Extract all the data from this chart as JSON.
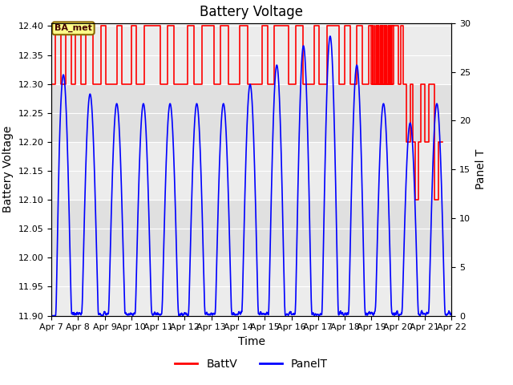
{
  "title": "Battery Voltage",
  "xlabel": "Time",
  "ylabel_left": "Battery Voltage",
  "ylabel_right": "Panel T",
  "ylim_left": [
    11.9,
    12.405
  ],
  "ylim_right": [
    0,
    30
  ],
  "xlim": [
    0,
    15
  ],
  "x_tick_labels": [
    "Apr 7",
    "Apr 8",
    "Apr 9",
    "Apr 10",
    "Apr 11",
    "Apr 12",
    "Apr 13",
    "Apr 14",
    "Apr 15",
    "Apr 16",
    "Apr 17",
    "Apr 18",
    "Apr 19",
    "Apr 20",
    "Apr 21",
    "Apr 22"
  ],
  "x_tick_positions": [
    0,
    1,
    2,
    3,
    4,
    5,
    6,
    7,
    8,
    9,
    10,
    11,
    12,
    13,
    14,
    15
  ],
  "annotation_text": "BA_met",
  "background_color": "#ffffff",
  "plot_bg_color": "#e0e0e0",
  "stripe_light": "#ececec",
  "red_color": "#ff0000",
  "blue_color": "#0000ff",
  "legend_labels": [
    "BattV",
    "PanelT"
  ],
  "title_fontsize": 12,
  "axis_label_fontsize": 10,
  "tick_fontsize": 8,
  "batt_x": [
    0.0,
    0.15,
    0.15,
    0.35,
    0.35,
    0.55,
    0.55,
    0.75,
    0.75,
    0.9,
    0.9,
    1.1,
    1.1,
    1.3,
    1.3,
    1.55,
    1.55,
    1.85,
    1.85,
    2.05,
    2.05,
    2.45,
    2.45,
    2.65,
    2.65,
    3.0,
    3.0,
    3.2,
    3.2,
    3.5,
    3.5,
    4.1,
    4.1,
    4.35,
    4.35,
    4.6,
    4.6,
    5.1,
    5.1,
    5.35,
    5.35,
    5.65,
    5.65,
    6.1,
    6.1,
    6.35,
    6.35,
    6.65,
    6.65,
    7.05,
    7.05,
    7.35,
    7.35,
    7.9,
    7.9,
    8.1,
    8.1,
    8.35,
    8.35,
    8.9,
    8.9,
    9.15,
    9.15,
    9.45,
    9.45,
    9.85,
    9.85,
    10.05,
    10.05,
    10.35,
    10.35,
    10.8,
    10.8,
    11.0,
    11.0,
    11.2,
    11.2,
    11.45,
    11.45,
    11.65,
    11.65,
    11.9,
    11.9,
    12.05,
    12.05,
    12.2,
    12.2,
    12.27,
    12.27,
    12.32,
    12.32,
    12.38,
    12.38,
    12.44,
    12.44,
    12.49,
    12.49,
    12.54,
    12.54,
    12.59,
    12.59,
    12.65,
    12.65,
    12.72,
    12.72,
    12.78,
    12.78,
    12.84,
    12.84,
    12.0,
    12.0,
    12.05,
    12.05,
    12.1,
    12.1,
    12.15,
    12.15,
    12.2,
    12.2,
    12.25,
    12.25,
    12.35,
    12.35,
    12.4,
    12.4,
    12.5,
    12.5,
    12.55,
    12.55,
    12.65,
    12.65,
    12.7,
    12.7,
    12.75,
    12.75,
    13.0,
    13.0,
    13.1,
    13.1,
    13.2,
    13.2,
    13.3,
    13.3,
    13.45,
    13.45,
    13.55,
    13.55,
    13.65,
    13.65,
    13.75,
    13.75,
    13.85,
    13.85,
    14.0,
    14.0,
    14.15,
    14.15,
    14.35,
    14.35,
    14.5,
    14.5,
    14.65,
    14.65,
    15.0
  ],
  "batt_v": [
    12.3,
    12.3,
    12.4,
    12.4,
    12.3,
    12.3,
    12.4,
    12.4,
    12.3,
    12.3,
    12.4,
    12.4,
    12.3,
    12.3,
    12.4,
    12.4,
    12.3,
    12.3,
    12.4,
    12.4,
    12.3,
    12.3,
    12.4,
    12.4,
    12.3,
    12.3,
    12.4,
    12.4,
    12.3,
    12.3,
    12.4,
    12.4,
    12.3,
    12.3,
    12.4,
    12.4,
    12.3,
    12.3,
    12.4,
    12.4,
    12.3,
    12.3,
    12.4,
    12.4,
    12.3,
    12.3,
    12.4,
    12.4,
    12.3,
    12.3,
    12.4,
    12.4,
    12.3,
    12.3,
    12.4,
    12.4,
    12.3,
    12.3,
    12.4,
    12.4,
    12.3,
    12.3,
    12.4,
    12.4,
    12.3,
    12.3,
    12.4,
    12.4,
    12.3,
    12.3,
    12.4,
    12.4,
    12.3,
    12.3,
    12.4,
    12.4,
    12.3,
    12.3,
    12.4,
    12.4,
    12.3,
    12.3,
    12.4,
    12.4,
    12.3,
    12.3,
    12.4,
    12.4,
    12.3,
    12.3,
    12.4,
    12.4,
    12.3,
    12.3,
    12.4,
    12.4,
    12.3,
    12.3,
    12.4,
    12.4,
    12.3,
    12.3,
    12.4,
    12.4,
    12.3,
    12.3,
    12.4,
    12.4,
    12.3,
    12.3,
    12.4,
    12.4,
    12.3,
    12.3,
    12.4,
    12.4,
    12.3,
    12.3,
    12.4,
    12.4,
    12.3,
    12.3,
    12.4,
    12.4,
    12.3,
    12.3,
    12.4,
    12.4,
    12.3,
    12.3,
    12.4,
    12.4,
    12.3,
    12.3,
    12.4,
    12.4,
    12.3,
    12.3,
    12.4,
    12.4,
    12.3,
    12.3,
    12.2,
    12.2,
    12.3,
    12.3,
    12.2,
    12.2,
    12.1,
    12.1,
    12.2,
    12.2,
    12.3,
    12.3,
    12.2,
    12.2,
    12.3,
    12.3,
    12.1,
    12.1,
    12.2,
    12.2,
    12.2
  ]
}
